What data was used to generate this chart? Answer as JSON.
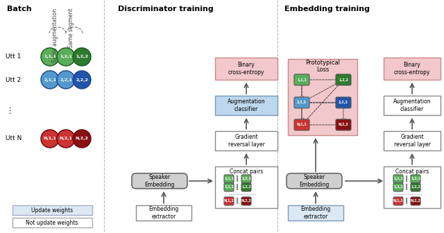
{
  "title_batch": "Batch",
  "title_disc": "Discriminator training",
  "title_emb": "Embedding training",
  "bg_color": "#ffffff",
  "circle_colors": {
    "green_light": "#5aad5a",
    "green_dark": "#2d7a2d",
    "blue_light": "#5599cc",
    "blue_dark": "#2255aa",
    "red_light": "#cc3333",
    "red_dark": "#881111"
  },
  "box_colors": {
    "pink": "#f2c8cc",
    "blue_light": "#bdd7ee",
    "white": "#ffffff",
    "gray": "#cccccc",
    "gray_fill": "#d0d0d0",
    "light_blue_fill": "#dce9f5"
  },
  "legend_update": "#dce9f5",
  "legend_not_update": "#ffffff"
}
